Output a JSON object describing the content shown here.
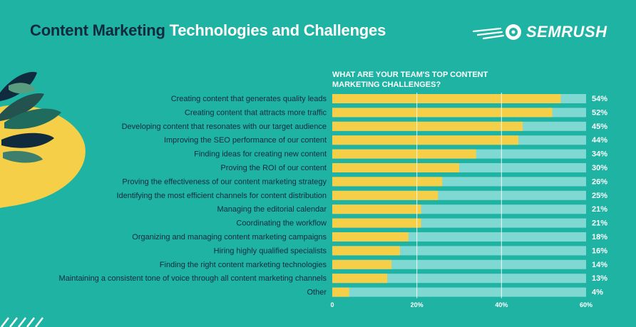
{
  "header": {
    "title_part1": "Content Marketing",
    "title_part2": "Technologies and Challenges",
    "brand": "SEMRUSH",
    "brand_icon": "semrush-fireball-icon"
  },
  "colors": {
    "background": "#1fb3a4",
    "bar_fill": "#f5cf47",
    "bar_track": "#7fd8d1",
    "title_dark": "#0f2b3d",
    "label_text": "#0f2b3d",
    "white": "#ffffff"
  },
  "chart_data": {
    "type": "bar",
    "orientation": "horizontal",
    "title": "WHAT ARE YOUR TEAM'S TOP CONTENT MARKETING CHALLENGES?",
    "title_lines": [
      "WHAT ARE YOUR TEAM'S TOP CONTENT",
      "MARKETING CHALLENGES?"
    ],
    "categories": [
      "Creating content that generates quality leads",
      "Creating content that attracts more traffic",
      "Developing content that resonates with our target audience",
      "Improving the SEO performance of our content",
      "Finding ideas for creating new content",
      "Proving the ROI of our content",
      "Proving the effectiveness of our content marketing strategy",
      "Identifying the most efficient channels for content distribution",
      "Managing the editorial calendar",
      "Coordinating the workflow",
      "Organizing and managing content marketing campaigns",
      "Hiring highly qualified specialists",
      "Finding the right content marketing technologies",
      "Maintaining a consistent tone of voice through all content marketing channels",
      "Other"
    ],
    "values": [
      54,
      52,
      45,
      44,
      34,
      30,
      26,
      25,
      21,
      21,
      18,
      16,
      14,
      13,
      4
    ],
    "value_labels": [
      "54%",
      "52%",
      "45%",
      "44%",
      "34%",
      "30%",
      "26%",
      "25%",
      "21%",
      "21%",
      "18%",
      "16%",
      "14%",
      "13%",
      "4%"
    ],
    "xlim": [
      0,
      60
    ],
    "ticks": [
      0,
      20,
      40,
      60
    ],
    "tick_labels": [
      "0",
      "20%",
      "40%",
      "60%"
    ],
    "grid": true,
    "xlabel": "",
    "ylabel": ""
  }
}
